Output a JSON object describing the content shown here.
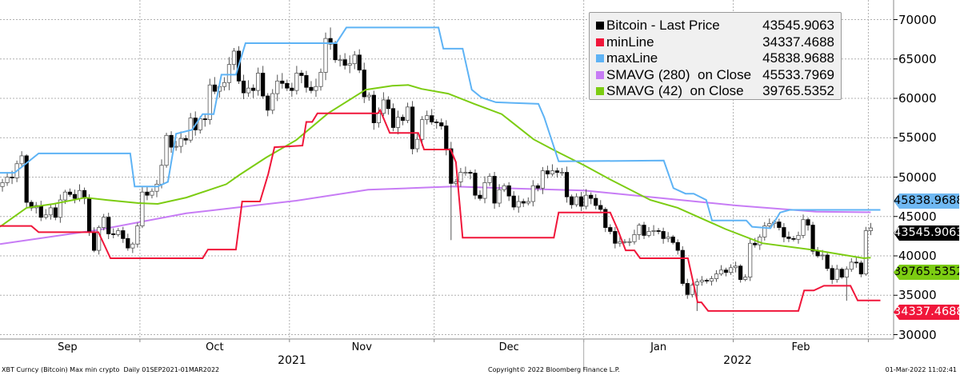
{
  "chart_data": {
    "type": "candlestick",
    "title": "XBT Curncy (Bitcoin) Max min crypto",
    "period": "Daily 01SEP2021-01MAR2022",
    "day_zero": "01SEP2021",
    "ylim": [
      30000,
      70500
    ],
    "yticks": [
      30000,
      35000,
      40000,
      45000,
      50000,
      55000,
      60000,
      65000,
      70000
    ],
    "ytick_labels": [
      "30000",
      "35000",
      "40000",
      "45000",
      "50000",
      "55000",
      "60000",
      "65000",
      "70000"
    ],
    "x_months": [
      "Sep",
      "Oct",
      "Nov",
      "Dec",
      "Jan",
      "Feb"
    ],
    "x_month_start_days": [
      0,
      30,
      61,
      91,
      122,
      153,
      181
    ],
    "x_years": [
      "2021",
      "2022"
    ],
    "grid": true,
    "legend_position": "top-right",
    "first_open": 47100,
    "closes": [
      48800,
      49300,
      50000,
      49900,
      51700,
      52700,
      46800,
      46100,
      46400,
      44900,
      45200,
      46100,
      44900,
      47100,
      48100,
      47800,
      47300,
      48300,
      47300,
      43000,
      40700,
      43600,
      44900,
      42800,
      42700,
      43200,
      42200,
      41000,
      41500,
      43800,
      48100,
      47700,
      48200,
      49100,
      51500,
      55300,
      53800,
      53900,
      54900,
      54700,
      57500,
      56000,
      57400,
      57300,
      61700,
      60900,
      61500,
      62000,
      64300,
      66000,
      62200,
      60700,
      61300,
      61000,
      63200,
      60300,
      58500,
      60600,
      62200,
      61900,
      61300,
      61000,
      63200,
      62900,
      61400,
      61000,
      61500,
      63300,
      67600,
      66900,
      64900,
      64900,
      64200,
      64400,
      65500,
      63600,
      60200,
      60400,
      56900,
      58100,
      59800,
      58700,
      56300,
      57600,
      57200,
      58900,
      53600,
      54800,
      57300,
      57800,
      57000,
      56900,
      56500,
      53600,
      49200,
      49400,
      50600,
      50600,
      50500,
      47700,
      47300,
      49300,
      50100,
      46700,
      48400,
      48900,
      47600,
      46200,
      46900,
      46700,
      46900,
      48900,
      48600,
      50800,
      50400,
      50800,
      50600,
      50600,
      47500,
      46500,
      47500,
      46300,
      47700,
      47300,
      46400,
      45900,
      43600,
      43100,
      41600,
      41800,
      41800,
      41800,
      42700,
      43900,
      42600,
      43100,
      43200,
      43100,
      42200,
      42400,
      41700,
      40700,
      36500,
      35100,
      36300,
      36700,
      36900,
      36800,
      37100,
      37700,
      38200,
      37900,
      38500,
      38700,
      37000,
      37300,
      41600,
      41400,
      42400,
      43800,
      44100,
      44300,
      43600,
      42400,
      42200,
      42100,
      42600,
      44600,
      43900,
      40600,
      40000,
      40100,
      38400,
      37000,
      38300,
      37300,
      38300,
      39200,
      39100,
      37700,
      43200,
      43545.9
    ],
    "wick_overrides": [
      {
        "day": 6,
        "high": 52900
      },
      {
        "day": 69,
        "high": 69000
      },
      {
        "day": 94,
        "low": 42000
      },
      {
        "day": 145,
        "low": 33000
      },
      {
        "day": 176,
        "low": 34300
      }
    ],
    "series": [
      {
        "name": "Bitcoin - Last Price",
        "last": "43545.9063",
        "color": "#000000"
      },
      {
        "name": "minLine",
        "last": "34337.4688",
        "color": "#f0163a",
        "points": [
          [
            0.5,
            43800
          ],
          [
            7,
            43800
          ],
          [
            8.5,
            43000
          ],
          [
            20.9,
            43000
          ],
          [
            23.4,
            39700
          ],
          [
            42.5,
            39700
          ],
          [
            43.6,
            40800
          ],
          [
            49.4,
            40800
          ],
          [
            50.7,
            46900
          ],
          [
            52.2,
            46900
          ],
          [
            54.4,
            46900
          ],
          [
            56.1,
            50400
          ],
          [
            57.4,
            53800
          ],
          [
            63.2,
            54000
          ],
          [
            64,
            57000
          ],
          [
            65.2,
            57000
          ],
          [
            66.3,
            58100
          ],
          [
            78.8,
            58100
          ],
          [
            79.3,
            58500
          ],
          [
            81.3,
            55600
          ],
          [
            87.2,
            55600
          ],
          [
            88.4,
            53500
          ],
          [
            93.9,
            53500
          ],
          [
            95,
            51900
          ],
          [
            96.4,
            42300
          ],
          [
            115.3,
            42300
          ],
          [
            116.3,
            45500
          ],
          [
            127,
            45500
          ],
          [
            128.5,
            43400
          ],
          [
            130.2,
            40700
          ],
          [
            132,
            40700
          ],
          [
            133.2,
            39700
          ],
          [
            143.1,
            39700
          ],
          [
            145.1,
            34100
          ],
          [
            145.9,
            34100
          ],
          [
            147.3,
            33000
          ],
          [
            166,
            33000
          ],
          [
            167.2,
            35600
          ],
          [
            169.2,
            35600
          ],
          [
            171.3,
            36200
          ],
          [
            176.8,
            36200
          ],
          [
            178.3,
            34337
          ],
          [
            183,
            34337
          ]
        ]
      },
      {
        "name": "maxLine",
        "last": "45838.9688",
        "color": "#5eb3f5",
        "points": [
          [
            0.5,
            50550
          ],
          [
            3.5,
            50550
          ],
          [
            8.5,
            53000
          ],
          [
            27.5,
            53000
          ],
          [
            28.4,
            48800
          ],
          [
            33.2,
            48800
          ],
          [
            35.3,
            49400
          ],
          [
            37,
            55500
          ],
          [
            40.3,
            56000
          ],
          [
            42.5,
            58000
          ],
          [
            44.8,
            58000
          ],
          [
            46.4,
            63000
          ],
          [
            49.4,
            63000
          ],
          [
            51.4,
            67000
          ],
          [
            70.2,
            67000
          ],
          [
            72.3,
            69000
          ],
          [
            91.4,
            69000
          ],
          [
            92.4,
            66300
          ],
          [
            96.4,
            66300
          ],
          [
            98.3,
            61100
          ],
          [
            100.3,
            60100
          ],
          [
            103.3,
            59500
          ],
          [
            112.1,
            59300
          ],
          [
            113.3,
            57600
          ],
          [
            116.3,
            52000
          ],
          [
            138.1,
            52100
          ],
          [
            140.1,
            48600
          ],
          [
            142.6,
            47900
          ],
          [
            144.3,
            47900
          ],
          [
            146.9,
            47100
          ],
          [
            148.1,
            44500
          ],
          [
            155.2,
            44500
          ],
          [
            156.4,
            43700
          ],
          [
            160.2,
            43500
          ],
          [
            162.2,
            45500
          ],
          [
            164.2,
            45839
          ],
          [
            183,
            45839
          ]
        ]
      },
      {
        "name": "SMAVG (280)  on Close",
        "last": "45533.7969",
        "color": "#c77cf5",
        "points": [
          [
            0.5,
            41500
          ],
          [
            20.9,
            43300
          ],
          [
            39.1,
            45400
          ],
          [
            61.9,
            47000
          ],
          [
            76.8,
            48400
          ],
          [
            90,
            48700
          ],
          [
            94.5,
            48800
          ],
          [
            110,
            48500
          ],
          [
            121.6,
            48300
          ],
          [
            136.5,
            47400
          ],
          [
            153.1,
            46400
          ],
          [
            169.7,
            45600
          ],
          [
            181,
            45534
          ]
        ]
      },
      {
        "name": "SMAVG (42)  on Close",
        "last": "39765.5352",
        "color": "#7ccc12",
        "points": [
          [
            0.5,
            43700
          ],
          [
            6,
            46100
          ],
          [
            11.6,
            46600
          ],
          [
            18.2,
            47400
          ],
          [
            22.6,
            47100
          ],
          [
            29.2,
            46700
          ],
          [
            33.2,
            46600
          ],
          [
            39.1,
            47400
          ],
          [
            47.4,
            49100
          ],
          [
            50.2,
            50300
          ],
          [
            55.7,
            52500
          ],
          [
            61.9,
            54700
          ],
          [
            68.5,
            58100
          ],
          [
            76.3,
            61100
          ],
          [
            81.8,
            61600
          ],
          [
            85.1,
            61700
          ],
          [
            87.9,
            61200
          ],
          [
            93.4,
            60600
          ],
          [
            98.8,
            59300
          ],
          [
            104.5,
            58000
          ],
          [
            111.1,
            54800
          ],
          [
            115.4,
            53400
          ],
          [
            121.6,
            51500
          ],
          [
            127,
            49700
          ],
          [
            135.3,
            47100
          ],
          [
            141,
            46100
          ],
          [
            150.9,
            43400
          ],
          [
            158.5,
            41600
          ],
          [
            169.7,
            40700
          ],
          [
            179.6,
            39700
          ],
          [
            181,
            39766
          ]
        ]
      }
    ]
  },
  "footer": {
    "left": "XBT Curncy (Bitcoin) Max min crypto  Daily 01SEP2021-01MAR2022",
    "center": "Copyright© 2022 Bloomberg Finance L.P.",
    "right": "01-Mar-2022 11:02:41"
  }
}
